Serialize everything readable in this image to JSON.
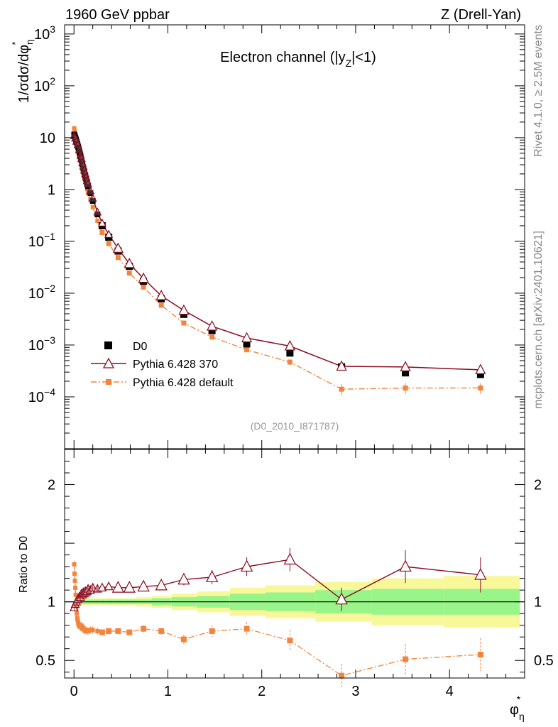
{
  "header": {
    "left": "1960 GeV ppbar",
    "right": "Z (Drell-Yan)",
    "subtitle": "Electron channel (|y",
    "subtitle_sub": "Z",
    "subtitle_end": "|<1)"
  },
  "side_texts": {
    "rivet": "Rivet 4.1.0, ≥ 2.5M events",
    "mcplots": "mcplots.cern.ch [arXiv:2401.10621]"
  },
  "analysis_id": "(D0_2010_I871787)",
  "legend": {
    "data": "D0",
    "mc1": "Pythia 6.428 370",
    "mc2": "Pythia 6.428 default"
  },
  "colors": {
    "data": "#000000",
    "mc1": "#8b0a1e",
    "mc2": "#f4843c",
    "band_inner": "#99f58a",
    "band_outer": "#f8f89a"
  },
  "axes": {
    "ylabel_main": "1/σdσ/dφ",
    "ylabel_main_sub": "η",
    "ylabel_main_sup": "*",
    "ylabel_ratio": "Ratio to D0",
    "xlabel": "φ",
    "xlabel_sub": "η",
    "xlabel_sup": "*"
  },
  "chart_data": {
    "type": "scatter",
    "main": {
      "yscale": "log",
      "xlim": [
        -0.1,
        4.8
      ],
      "ylim": [
        1e-05,
        1500
      ],
      "y_ticks": [
        {
          "value": 0.0001,
          "label": "10",
          "exp": "−4"
        },
        {
          "value": 0.001,
          "label": "10",
          "exp": "−3"
        },
        {
          "value": 0.01,
          "label": "10",
          "exp": "−2"
        },
        {
          "value": 0.1,
          "label": "10",
          "exp": "−1"
        },
        {
          "value": 1,
          "label": "1",
          "exp": ""
        },
        {
          "value": 10,
          "label": "10",
          "exp": ""
        },
        {
          "value": 100,
          "label": "10",
          "exp": "2"
        },
        {
          "value": 1000,
          "label": "10",
          "exp": "3"
        }
      ]
    },
    "ratio": {
      "ylim": [
        0.35,
        2.3
      ],
      "y_ticks": [
        {
          "value": 0.5,
          "label": "0.5"
        },
        {
          "value": 1,
          "label": "1"
        },
        {
          "value": 2,
          "label": "2"
        }
      ]
    },
    "x_ticks": [
      {
        "value": 0,
        "label": "0"
      },
      {
        "value": 1,
        "label": "1"
      },
      {
        "value": 2,
        "label": "2"
      },
      {
        "value": 3,
        "label": "3"
      },
      {
        "value": 4,
        "label": "4"
      }
    ],
    "x": [
      0.002,
      0.006,
      0.01,
      0.014,
      0.018,
      0.022,
      0.026,
      0.03,
      0.035,
      0.04,
      0.045,
      0.05,
      0.055,
      0.06,
      0.065,
      0.07,
      0.075,
      0.08,
      0.09,
      0.1,
      0.11,
      0.12,
      0.13,
      0.14,
      0.15,
      0.175,
      0.2,
      0.25,
      0.3,
      0.37,
      0.47,
      0.59,
      0.74,
      0.93,
      1.17,
      1.47,
      1.84,
      2.3,
      2.85,
      3.53,
      4.33
    ],
    "bin_edges": [
      0,
      0.004,
      0.008,
      0.012,
      0.016,
      0.02,
      0.024,
      0.028,
      0.032,
      0.037,
      0.043,
      0.048,
      0.052,
      0.057,
      0.062,
      0.068,
      0.073,
      0.078,
      0.085,
      0.095,
      0.105,
      0.115,
      0.125,
      0.135,
      0.145,
      0.16,
      0.19,
      0.22,
      0.28,
      0.33,
      0.42,
      0.53,
      0.66,
      0.83,
      1.04,
      1.31,
      1.66,
      2.04,
      2.57,
      3.17,
      3.94,
      4.75
    ],
    "series": [
      {
        "name": "D0",
        "values": [
          11.5,
          11.0,
          10.5,
          10.0,
          9.5,
          9.0,
          8.5,
          8.1,
          7.6,
          7.1,
          6.6,
          6.1,
          5.6,
          5.2,
          4.8,
          4.4,
          4.0,
          3.7,
          3.1,
          2.6,
          2.2,
          1.85,
          1.6,
          1.35,
          1.15,
          0.85,
          0.6,
          0.33,
          0.2,
          0.12,
          0.065,
          0.033,
          0.017,
          0.0078,
          0.0039,
          0.0019,
          0.00105,
          0.0007,
          0.00038,
          0.00029,
          0.00027
        ],
        "ratio_band_inner": [
          0.02,
          0.02,
          0.02,
          0.02,
          0.02,
          0.02,
          0.02,
          0.02,
          0.02,
          0.02,
          0.02,
          0.02,
          0.02,
          0.02,
          0.02,
          0.02,
          0.02,
          0.02,
          0.02,
          0.02,
          0.02,
          0.02,
          0.02,
          0.02,
          0.02,
          0.02,
          0.02,
          0.02,
          0.02,
          0.02,
          0.02,
          0.02,
          0.02,
          0.03,
          0.04,
          0.05,
          0.07,
          0.08,
          0.1,
          0.11,
          0.11
        ],
        "ratio_band_outer": [
          0.03,
          0.03,
          0.03,
          0.03,
          0.03,
          0.03,
          0.03,
          0.03,
          0.03,
          0.03,
          0.03,
          0.03,
          0.03,
          0.03,
          0.03,
          0.03,
          0.03,
          0.03,
          0.03,
          0.03,
          0.03,
          0.03,
          0.03,
          0.03,
          0.03,
          0.03,
          0.03,
          0.03,
          0.03,
          0.03,
          0.03,
          0.03,
          0.04,
          0.05,
          0.07,
          0.09,
          0.12,
          0.14,
          0.17,
          0.2,
          0.22
        ]
      },
      {
        "name": "Pythia 6.428 370",
        "ratio": [
          0.95,
          0.96,
          0.97,
          0.98,
          0.99,
          1.0,
          1.0,
          1.01,
          1.0,
          1.02,
          1.03,
          1.01,
          1.04,
          1.05,
          1.06,
          1.04,
          1.05,
          1.07,
          1.06,
          1.08,
          1.07,
          1.09,
          1.08,
          1.09,
          1.11,
          1.1,
          1.12,
          1.11,
          1.12,
          1.13,
          1.12,
          1.12,
          1.13,
          1.14,
          1.19,
          1.21,
          1.3,
          1.36,
          1.02,
          1.3,
          1.23
        ],
        "ratio_err": [
          0.03,
          0.03,
          0.03,
          0.03,
          0.03,
          0.03,
          0.03,
          0.03,
          0.03,
          0.03,
          0.03,
          0.03,
          0.03,
          0.03,
          0.03,
          0.03,
          0.03,
          0.03,
          0.03,
          0.03,
          0.03,
          0.03,
          0.03,
          0.03,
          0.03,
          0.03,
          0.03,
          0.03,
          0.03,
          0.03,
          0.03,
          0.03,
          0.03,
          0.04,
          0.05,
          0.06,
          0.08,
          0.1,
          0.1,
          0.14,
          0.15
        ]
      },
      {
        "name": "Pythia 6.428 default",
        "ratio": [
          1.32,
          1.24,
          1.18,
          1.12,
          1.06,
          0.98,
          0.96,
          0.9,
          0.86,
          0.84,
          0.82,
          0.8,
          0.8,
          0.79,
          0.79,
          0.79,
          0.8,
          0.78,
          0.77,
          0.78,
          0.76,
          0.75,
          0.76,
          0.75,
          0.75,
          0.76,
          0.76,
          0.75,
          0.74,
          0.75,
          0.75,
          0.74,
          0.77,
          0.75,
          0.68,
          0.75,
          0.77,
          0.67,
          0.37,
          0.51,
          0.55
        ],
        "ratio_err": [
          0.03,
          0.03,
          0.03,
          0.03,
          0.03,
          0.03,
          0.03,
          0.03,
          0.03,
          0.03,
          0.03,
          0.03,
          0.03,
          0.03,
          0.03,
          0.03,
          0.03,
          0.03,
          0.03,
          0.03,
          0.03,
          0.03,
          0.03,
          0.03,
          0.03,
          0.03,
          0.03,
          0.03,
          0.02,
          0.02,
          0.02,
          0.02,
          0.03,
          0.03,
          0.04,
          0.05,
          0.06,
          0.09,
          0.1,
          0.13,
          0.14
        ]
      }
    ]
  }
}
